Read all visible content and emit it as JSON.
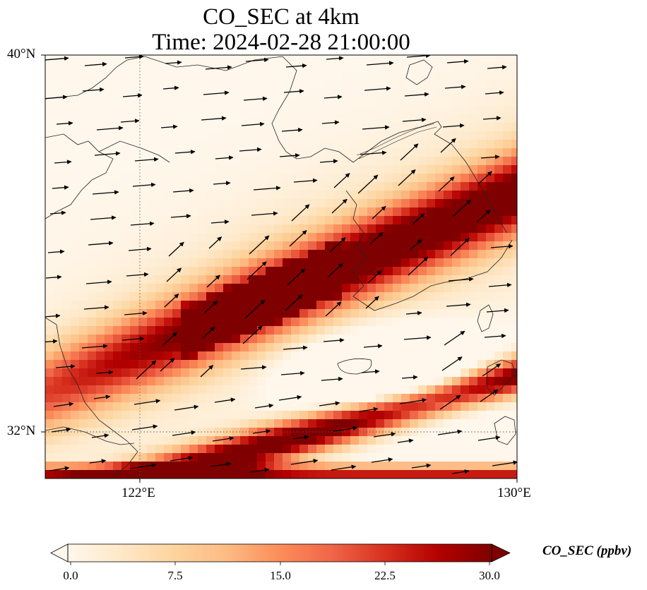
{
  "title": {
    "line1": "CO_SEC at 4km",
    "line2": "Time: 2024-02-28 21:00:00"
  },
  "axes": {
    "lat_labels": [
      "40°N",
      "32°N"
    ],
    "lon_labels": [
      "122°E",
      "130°E"
    ],
    "lon_range": [
      120,
      130
    ],
    "lat_range": [
      31,
      40
    ],
    "gridlines": "dotted at 122°E and 32°N"
  },
  "colorbar": {
    "label": "CO_SEC (ppbv)",
    "ticks": [
      "0.0",
      "7.5",
      "15.0",
      "22.5",
      "30.0"
    ],
    "range": [
      0,
      30
    ],
    "extend": "both",
    "colormap": "OrRd",
    "colors": [
      "#fff7ec",
      "#fee8c8",
      "#fdd49e",
      "#fdbb84",
      "#fc8d59",
      "#ef6548",
      "#d7301f",
      "#b30000",
      "#7f0000"
    ]
  },
  "chart_data": {
    "type": "heatmap",
    "variable": "CO_SEC",
    "units": "ppbv",
    "level": "4km",
    "time": "2024-02-28 21:00:00",
    "lon_range": [
      120,
      130
    ],
    "lat_range": [
      31,
      40
    ],
    "value_range": [
      0,
      30
    ],
    "overlay": "wind vectors",
    "map_features": [
      "coastlines",
      "borders"
    ]
  }
}
